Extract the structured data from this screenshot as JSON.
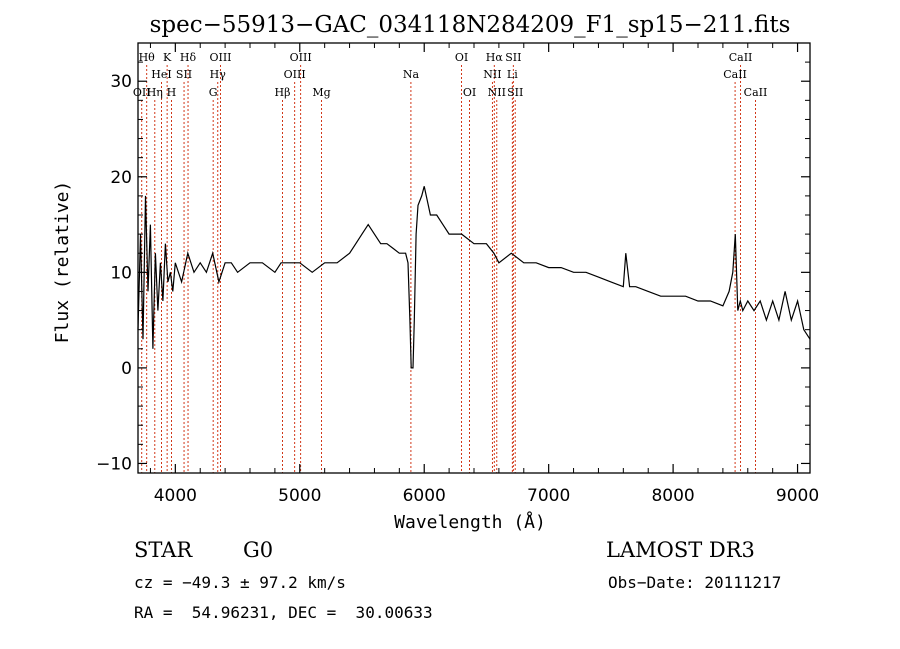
{
  "chart_data": {
    "type": "line",
    "title": "spec−55913−GAC_034118N284209_F1_sp15−211.fits",
    "xlabel": "Wavelength (Å)",
    "ylabel": "Flux (relative)",
    "xlim": [
      3700,
      9100
    ],
    "ylim": [
      -11,
      34
    ],
    "x_ticks": [
      4000,
      5000,
      6000,
      7000,
      8000,
      9000
    ],
    "y_ticks": [
      -10,
      0,
      10,
      20,
      30
    ],
    "grid": false,
    "series": [
      {
        "x": [
          3700,
          3720,
          3740,
          3760,
          3780,
          3800,
          3820,
          3840,
          3860,
          3880,
          3900,
          3920,
          3940,
          3960,
          3980,
          4000,
          4050,
          4100,
          4150,
          4200,
          4250,
          4300,
          4350,
          4400,
          4450,
          4500,
          4600,
          4700,
          4800,
          4850,
          4900,
          5000,
          5100,
          5200,
          5300,
          5400,
          5450,
          5500,
          5550,
          5600,
          5650,
          5700,
          5750,
          5800,
          5850,
          5870,
          5885,
          5895,
          5910,
          5920,
          5935,
          5950,
          5980,
          6000,
          6050,
          6100,
          6150,
          6200,
          6300,
          6400,
          6500,
          6560,
          6600,
          6700,
          6800,
          6900,
          7000,
          7100,
          7200,
          7300,
          7400,
          7500,
          7600,
          7620,
          7650,
          7700,
          7800,
          7900,
          8000,
          8100,
          8200,
          8300,
          8400,
          8450,
          8480,
          8500,
          8520,
          8540,
          8560,
          8600,
          8650,
          8700,
          8750,
          8800,
          8850,
          8900,
          8950,
          9000,
          9050,
          9100
        ],
        "y": [
          4,
          14,
          3,
          18,
          8,
          15,
          2,
          12,
          6,
          11,
          7,
          13,
          9,
          10,
          8,
          11,
          9,
          12,
          10,
          11,
          10,
          12,
          9,
          11,
          11,
          10,
          11,
          11,
          10,
          11,
          11,
          11,
          10,
          11,
          11,
          12,
          13,
          14,
          15,
          14,
          13,
          13,
          12.5,
          12,
          12,
          11,
          5,
          0,
          0,
          5,
          14,
          17,
          18,
          19,
          16,
          16,
          15,
          14,
          14,
          13,
          13,
          12,
          11,
          12,
          11,
          11,
          10.5,
          10.5,
          10,
          10,
          9.5,
          9,
          8.5,
          12,
          8.5,
          8.5,
          8,
          7.5,
          7.5,
          7.5,
          7,
          7,
          6.5,
          8,
          10,
          14,
          6,
          7,
          6,
          7,
          6,
          7,
          5,
          7,
          5,
          8,
          5,
          7,
          4,
          3
        ]
      }
    ],
    "lines": [
      {
        "wavelength": 3730,
        "label": "OII",
        "row": 3
      },
      {
        "wavelength": 3770,
        "label": "Hθ",
        "row": 1
      },
      {
        "wavelength": 3835,
        "label": "Hη",
        "row": 3
      },
      {
        "wavelength": 3889,
        "label": "HeI",
        "row": 2
      },
      {
        "wavelength": 3934,
        "label": "K",
        "row": 1
      },
      {
        "wavelength": 3969,
        "label": "H",
        "row": 3
      },
      {
        "wavelength": 4070,
        "label": "SII",
        "row": 2
      },
      {
        "wavelength": 4102,
        "label": "Hδ",
        "row": 1
      },
      {
        "wavelength": 4304,
        "label": "G",
        "row": 3
      },
      {
        "wavelength": 4341,
        "label": "Hγ",
        "row": 2
      },
      {
        "wavelength": 4363,
        "label": "OIII",
        "row": 1
      },
      {
        "wavelength": 4861,
        "label": "Hβ",
        "row": 3
      },
      {
        "wavelength": 4959,
        "label": "OIII",
        "row": 2
      },
      {
        "wavelength": 5007,
        "label": "OIII",
        "row": 1
      },
      {
        "wavelength": 5175,
        "label": "Mg",
        "row": 3
      },
      {
        "wavelength": 5893,
        "label": "Na",
        "row": 2
      },
      {
        "wavelength": 6300,
        "label": "OI",
        "row": 1
      },
      {
        "wavelength": 6364,
        "label": "OI",
        "row": 3
      },
      {
        "wavelength": 6548,
        "label": "NII",
        "row": 2
      },
      {
        "wavelength": 6563,
        "label": "Hα",
        "row": 1
      },
      {
        "wavelength": 6583,
        "label": "NII",
        "row": 3
      },
      {
        "wavelength": 6708,
        "label": "Li",
        "row": 2
      },
      {
        "wavelength": 6716,
        "label": "SII",
        "row": 1
      },
      {
        "wavelength": 6731,
        "label": "SII",
        "row": 3
      },
      {
        "wavelength": 8498,
        "label": "CaII",
        "row": 2
      },
      {
        "wavelength": 8542,
        "label": "CaII",
        "row": 1
      },
      {
        "wavelength": 8662,
        "label": "CaII",
        "row": 3
      }
    ]
  },
  "footer": {
    "class_label": "STAR",
    "subclass_label": "G0",
    "survey_label": "LAMOST DR3",
    "redshift_text": "cz = −49.3 ± 97.2 km/s",
    "obs_date_text": "Obs−Date: 20111217",
    "coords_text": "RA =  54.96231, DEC =  30.00633"
  },
  "colors": {
    "spectrum": "#000000",
    "line_markers": "#cc2200",
    "axes": "#000000",
    "background": "#ffffff"
  }
}
